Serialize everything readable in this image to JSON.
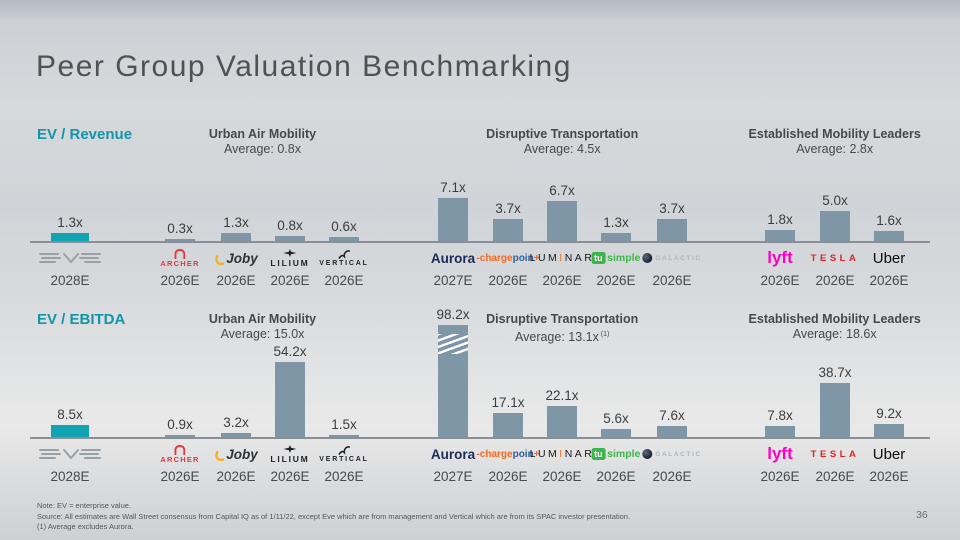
{
  "title": "Peer Group Valuation Benchmarking",
  "page_number": "36",
  "footnotes": {
    "note": "Note: EV = enterprise value.",
    "source": "Source: All estimates are Wall Street consensus from Capital IQ as of 1/11/22, except Eve which are from management and Vertical which are from its SPAC investor presentation.",
    "exclusion": "(1) Average excludes Aurora."
  },
  "colors": {
    "accent": "#1295A9",
    "bar": "#7E96A6",
    "eve_bar": "#10A3B2",
    "archer_red": "#E0393E",
    "joby_yellow": "#F2B02C",
    "aurora_navy": "#1C2B55",
    "cp_orange": "#F26722",
    "cp_blue": "#2F5F9E",
    "luminar_orange": "#F07020",
    "tusimple_green": "#3CB54A",
    "lyft_pink": "#FF00BF",
    "tesla_red": "#E12026"
  },
  "logos": {
    "eve": {
      "style": "wordmark-lines"
    },
    "archer": {
      "text": "ARCHER"
    },
    "joby": {
      "text": "Joby"
    },
    "lilium": {
      "text": "LILIUM"
    },
    "vertical": {
      "text": "VERTICAL"
    },
    "aurora": {
      "text": "Aurora"
    },
    "chargepoint": {
      "text_left": "-charge",
      "text_mid": "poin",
      "text_right": "+"
    },
    "luminar": {
      "text_left": "LUM",
      "text_i": "I",
      "text_right": "NAR"
    },
    "tusimple": {
      "text_box": "tu",
      "text": "simple"
    },
    "galactic": {
      "text": "GALACTIC"
    },
    "lyft": {
      "text": "lyft"
    },
    "tesla": {
      "text": "TESLA"
    },
    "uber": {
      "text": "Uber"
    }
  },
  "chart_data": [
    {
      "type": "bar",
      "metric": "EV / Revenue",
      "groups": [
        {
          "header": "",
          "average": "",
          "companies": [
            {
              "id": "eve",
              "name": "Eve",
              "year": "2028E",
              "value": 1.3,
              "label": "1.3x"
            }
          ]
        },
        {
          "header": "Urban Air Mobility",
          "average": "Average: 0.8x",
          "companies": [
            {
              "id": "archer",
              "name": "Archer",
              "year": "2026E",
              "value": 0.3,
              "label": "0.3x"
            },
            {
              "id": "joby",
              "name": "Joby",
              "year": "2026E",
              "value": 1.3,
              "label": "1.3x"
            },
            {
              "id": "lilium",
              "name": "Lilium",
              "year": "2026E",
              "value": 0.8,
              "label": "0.8x"
            },
            {
              "id": "vertical",
              "name": "Vertical",
              "year": "2026E",
              "value": 0.6,
              "label": "0.6x"
            }
          ]
        },
        {
          "header": "Disruptive Transportation",
          "average": "Average: 4.5x",
          "companies": [
            {
              "id": "aurora",
              "name": "Aurora",
              "year": "2027E",
              "value": 7.1,
              "label": "7.1x"
            },
            {
              "id": "chargepoint",
              "name": "ChargePoint",
              "year": "2026E",
              "value": 3.7,
              "label": "3.7x"
            },
            {
              "id": "luminar",
              "name": "Luminar",
              "year": "2026E",
              "value": 6.7,
              "label": "6.7x"
            },
            {
              "id": "tusimple",
              "name": "TuSimple",
              "year": "2026E",
              "value": 1.3,
              "label": "1.3x"
            },
            {
              "id": "galactic",
              "name": "Virgin Galactic",
              "year": "2026E",
              "value": 3.7,
              "label": "3.7x"
            }
          ]
        },
        {
          "header": "Established Mobility Leaders",
          "average": "Average: 2.8x",
          "companies": [
            {
              "id": "lyft",
              "name": "Lyft",
              "year": "2026E",
              "value": 1.8,
              "label": "1.8x"
            },
            {
              "id": "tesla",
              "name": "Tesla",
              "year": "2026E",
              "value": 5.0,
              "label": "5.0x"
            },
            {
              "id": "uber",
              "name": "Uber",
              "year": "2026E",
              "value": 1.6,
              "label": "1.6x"
            }
          ]
        }
      ]
    },
    {
      "type": "bar",
      "metric": "EV / EBITDA",
      "groups": [
        {
          "header": "",
          "average": "",
          "companies": [
            {
              "id": "eve",
              "name": "Eve",
              "year": "2028E",
              "value": 8.5,
              "label": "8.5x"
            }
          ]
        },
        {
          "header": "Urban Air Mobility",
          "average": "Average: 15.0x",
          "companies": [
            {
              "id": "archer",
              "name": "Archer",
              "year": "2026E",
              "value": 0.9,
              "label": "0.9x"
            },
            {
              "id": "joby",
              "name": "Joby",
              "year": "2026E",
              "value": 3.2,
              "label": "3.2x"
            },
            {
              "id": "lilium",
              "name": "Lilium",
              "year": "2026E",
              "value": 54.2,
              "label": "54.2x"
            },
            {
              "id": "vertical",
              "name": "Vertical",
              "year": "2026E",
              "value": 1.5,
              "label": "1.5x"
            }
          ]
        },
        {
          "header": "Disruptive Transportation",
          "average": "Average: 13.1x",
          "average_note": "(1)",
          "companies": [
            {
              "id": "aurora",
              "name": "Aurora",
              "year": "2027E",
              "value": 98.2,
              "label": "98.2x",
              "break": true
            },
            {
              "id": "chargepoint",
              "name": "ChargePoint",
              "year": "2026E",
              "value": 17.1,
              "label": "17.1x"
            },
            {
              "id": "luminar",
              "name": "Luminar",
              "year": "2026E",
              "value": 22.1,
              "label": "22.1x"
            },
            {
              "id": "tusimple",
              "name": "TuSimple",
              "year": "2026E",
              "value": 5.6,
              "label": "5.6x"
            },
            {
              "id": "galactic",
              "name": "Virgin Galactic",
              "year": "2026E",
              "value": 7.6,
              "label": "7.6x"
            }
          ]
        },
        {
          "header": "Established Mobility Leaders",
          "average": "Average: 18.6x",
          "companies": [
            {
              "id": "lyft",
              "name": "Lyft",
              "year": "2026E",
              "value": 7.8,
              "label": "7.8x"
            },
            {
              "id": "tesla",
              "name": "Tesla",
              "year": "2026E",
              "value": 38.7,
              "label": "38.7x"
            },
            {
              "id": "uber",
              "name": "Uber",
              "year": "2026E",
              "value": 9.2,
              "label": "9.2x"
            }
          ]
        }
      ]
    }
  ]
}
